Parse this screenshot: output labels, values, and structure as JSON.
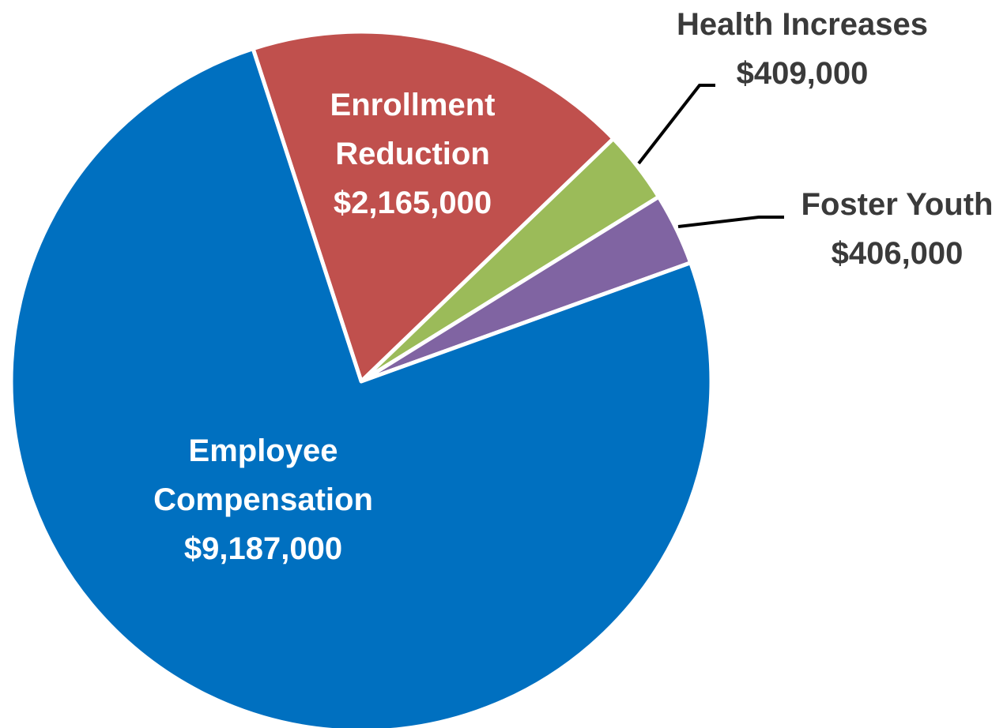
{
  "chart_data": {
    "type": "pie",
    "categories": [
      "Enrollment Reduction",
      "Health Increases",
      "Foster Youth",
      "Employee Compensation"
    ],
    "values": [
      2165000,
      409000,
      406000,
      9187000
    ],
    "value_labels": [
      "$2,165,000",
      "$409,000",
      "$406,000",
      "$9,187,000"
    ],
    "colors": [
      "#c0504d",
      "#9bbb59",
      "#8064a2",
      "#0070c0"
    ]
  }
}
